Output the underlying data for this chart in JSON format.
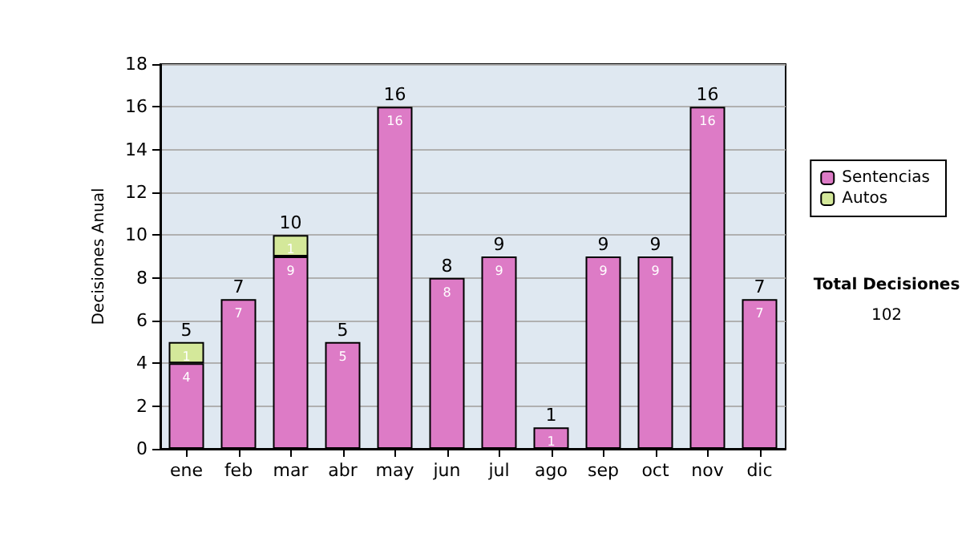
{
  "chart_data": {
    "type": "bar",
    "stacked": true,
    "ylabel": "Decisiones Anual",
    "categories": [
      "ene",
      "feb",
      "mar",
      "abr",
      "may",
      "jun",
      "jul",
      "ago",
      "sep",
      "oct",
      "nov",
      "dic"
    ],
    "series": [
      {
        "name": "Sentencias",
        "color": "#dd7bc6",
        "values": [
          4,
          7,
          9,
          5,
          16,
          8,
          9,
          1,
          9,
          9,
          16,
          7
        ]
      },
      {
        "name": "Autos",
        "color": "#d4e89a",
        "values": [
          1,
          null,
          1,
          null,
          null,
          null,
          null,
          null,
          null,
          null,
          null,
          null
        ]
      }
    ],
    "totals": [
      "5",
      "7",
      "10",
      "5",
      "16",
      "8",
      "9",
      "1",
      "9",
      "9",
      "16",
      "7"
    ],
    "data_labels": true,
    "ylim": [
      0,
      18
    ],
    "yticks": [
      0,
      2,
      4,
      6,
      8,
      10,
      12,
      14,
      16,
      18
    ],
    "grid": "y",
    "legend": "right",
    "annotations": [
      "Total Decisiones",
      "102"
    ]
  }
}
